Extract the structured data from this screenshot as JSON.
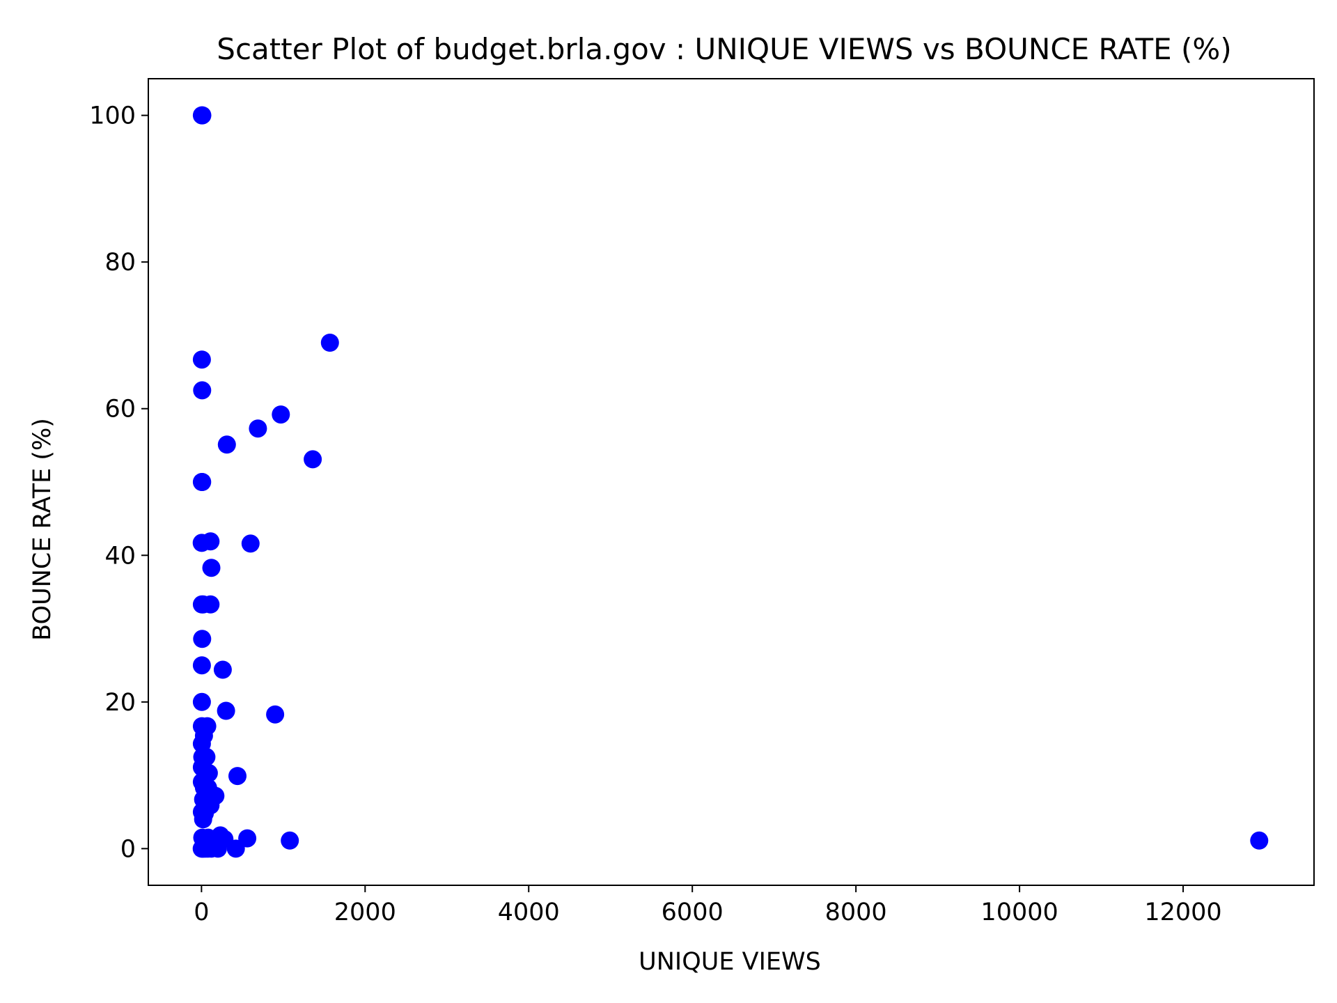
{
  "chart_data": {
    "type": "scatter",
    "title": "Scatter Plot of budget.brla.gov : UNIQUE VIEWS vs BOUNCE RATE (%)",
    "xlabel": "UNIQUE VIEWS",
    "ylabel": "BOUNCE RATE (%)",
    "xlim": [
      -650,
      13600
    ],
    "ylim": [
      -5,
      105
    ],
    "xticks": [
      0,
      2000,
      4000,
      6000,
      8000,
      10000,
      12000
    ],
    "yticks": [
      0,
      20,
      40,
      60,
      80,
      100
    ],
    "xtick_labels": [
      "0",
      "2000",
      "4000",
      "6000",
      "8000",
      "10000",
      "12000"
    ],
    "ytick_labels": [
      "0",
      "20",
      "40",
      "60",
      "80",
      "100"
    ],
    "grid": false,
    "legend": "none",
    "marker_color": "#0000ff",
    "points": [
      {
        "x": 5,
        "y": 100
      },
      {
        "x": 10,
        "y": 100
      },
      {
        "x": 5,
        "y": 66.7
      },
      {
        "x": 8,
        "y": 62.5
      },
      {
        "x": 1570,
        "y": 69
      },
      {
        "x": 970,
        "y": 59.2
      },
      {
        "x": 690,
        "y": 57.3
      },
      {
        "x": 310,
        "y": 55.1
      },
      {
        "x": 1360,
        "y": 53.1
      },
      {
        "x": 5,
        "y": 50
      },
      {
        "x": 8,
        "y": 50
      },
      {
        "x": 3,
        "y": 41.7
      },
      {
        "x": 110,
        "y": 41.9
      },
      {
        "x": 600,
        "y": 41.6
      },
      {
        "x": 120,
        "y": 38.3
      },
      {
        "x": 5,
        "y": 33.3
      },
      {
        "x": 20,
        "y": 33.3
      },
      {
        "x": 110,
        "y": 33.3
      },
      {
        "x": 8,
        "y": 28.6
      },
      {
        "x": 5,
        "y": 25
      },
      {
        "x": 260,
        "y": 24.4
      },
      {
        "x": 5,
        "y": 20
      },
      {
        "x": 300,
        "y": 18.8
      },
      {
        "x": 900,
        "y": 18.3
      },
      {
        "x": 5,
        "y": 16.7
      },
      {
        "x": 70,
        "y": 16.7
      },
      {
        "x": 30,
        "y": 15.4
      },
      {
        "x": 5,
        "y": 14.3
      },
      {
        "x": 10,
        "y": 12.5
      },
      {
        "x": 60,
        "y": 12.5
      },
      {
        "x": 5,
        "y": 11.1
      },
      {
        "x": 40,
        "y": 10.5
      },
      {
        "x": 90,
        "y": 10.3
      },
      {
        "x": 440,
        "y": 9.9
      },
      {
        "x": 5,
        "y": 9.1
      },
      {
        "x": 30,
        "y": 8.3
      },
      {
        "x": 80,
        "y": 8.3
      },
      {
        "x": 170,
        "y": 7.2
      },
      {
        "x": 20,
        "y": 6.7
      },
      {
        "x": 60,
        "y": 6.3
      },
      {
        "x": 110,
        "y": 5.9
      },
      {
        "x": 5,
        "y": 5
      },
      {
        "x": 40,
        "y": 4.8
      },
      {
        "x": 20,
        "y": 4
      },
      {
        "x": 10,
        "y": 1.5
      },
      {
        "x": 80,
        "y": 1.5
      },
      {
        "x": 150,
        "y": 1.2
      },
      {
        "x": 230,
        "y": 1.8
      },
      {
        "x": 280,
        "y": 1.3
      },
      {
        "x": 560,
        "y": 1.4
      },
      {
        "x": 1080,
        "y": 1.1
      },
      {
        "x": 12930,
        "y": 1.1
      },
      {
        "x": 3,
        "y": 0
      },
      {
        "x": 10,
        "y": 0
      },
      {
        "x": 25,
        "y": 0
      },
      {
        "x": 50,
        "y": 0
      },
      {
        "x": 80,
        "y": 0
      },
      {
        "x": 120,
        "y": 0
      },
      {
        "x": 200,
        "y": 0
      },
      {
        "x": 420,
        "y": 0
      }
    ]
  }
}
